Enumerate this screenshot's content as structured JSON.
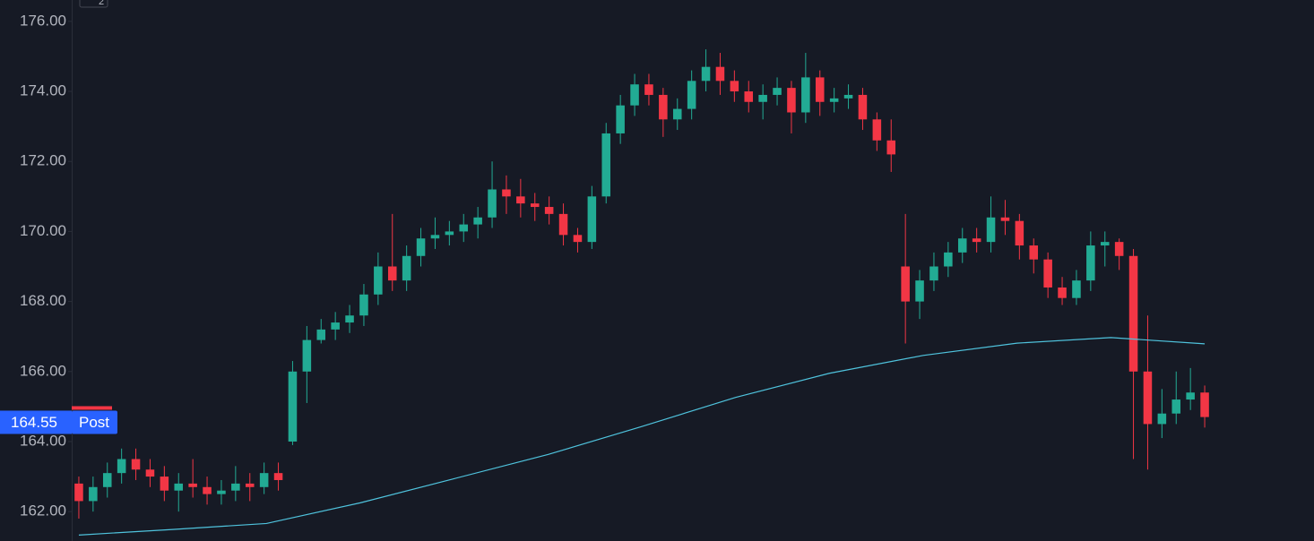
{
  "chart_data": {
    "type": "candlestick",
    "badge": "2",
    "open": [
      162.8,
      162.3,
      162.7,
      163.1,
      163.5,
      163.2,
      163.0,
      162.6,
      162.8,
      162.7,
      162.5,
      162.6,
      162.8,
      162.7,
      163.1,
      164.0,
      166.0,
      166.9,
      167.2,
      167.4,
      167.6,
      168.2,
      169.0,
      168.6,
      169.3,
      169.8,
      169.9,
      170.0,
      170.2,
      170.4,
      171.2,
      171.0,
      170.8,
      170.7,
      170.5,
      169.9,
      169.7,
      171.0,
      172.8,
      173.6,
      174.2,
      173.9,
      173.2,
      173.5,
      174.3,
      174.7,
      174.3,
      174.0,
      173.7,
      173.9,
      174.1,
      173.4,
      174.4,
      173.7,
      173.8,
      173.9,
      173.2,
      172.6,
      169.0,
      168.0,
      168.6,
      169.0,
      169.4,
      169.8,
      169.7,
      170.4,
      170.3,
      169.6,
      169.2,
      168.4,
      168.1,
      168.6,
      169.6,
      169.7,
      169.3,
      166.0,
      164.5,
      164.8,
      165.2,
      165.4
    ],
    "high": [
      163.0,
      163.0,
      163.4,
      163.8,
      163.8,
      163.5,
      163.3,
      163.1,
      163.5,
      163.0,
      162.9,
      163.3,
      163.1,
      163.4,
      163.4,
      166.3,
      167.3,
      167.5,
      167.7,
      167.9,
      168.5,
      169.4,
      170.5,
      169.6,
      170.1,
      170.4,
      170.3,
      170.5,
      170.7,
      172.0,
      171.6,
      171.5,
      171.1,
      171.0,
      170.8,
      170.1,
      171.3,
      173.1,
      173.9,
      174.5,
      174.5,
      174.1,
      173.8,
      174.6,
      175.2,
      175.1,
      174.6,
      174.3,
      174.2,
      174.4,
      174.3,
      175.1,
      174.6,
      174.1,
      174.2,
      174.1,
      173.4,
      173.2,
      170.5,
      168.9,
      169.4,
      169.7,
      170.1,
      170.1,
      171.0,
      170.9,
      170.5,
      169.8,
      169.4,
      168.7,
      168.9,
      170.0,
      170.0,
      169.8,
      169.5,
      167.6,
      165.5,
      166.0,
      166.1,
      165.6
    ],
    "low": [
      161.8,
      162.0,
      162.4,
      162.8,
      162.9,
      162.7,
      162.3,
      162.0,
      162.4,
      162.2,
      162.2,
      162.3,
      162.3,
      162.5,
      162.6,
      163.9,
      165.1,
      166.8,
      166.9,
      167.1,
      167.3,
      167.9,
      168.3,
      168.3,
      169.0,
      169.5,
      169.6,
      169.7,
      169.8,
      170.1,
      170.5,
      170.4,
      170.3,
      170.2,
      169.6,
      169.4,
      169.5,
      170.8,
      172.5,
      173.3,
      173.6,
      172.7,
      172.9,
      173.2,
      174.0,
      173.9,
      173.7,
      173.4,
      173.2,
      173.6,
      172.8,
      173.1,
      173.3,
      173.4,
      173.5,
      172.9,
      172.3,
      171.7,
      166.8,
      167.5,
      168.3,
      168.7,
      169.1,
      169.4,
      169.4,
      169.9,
      169.2,
      168.8,
      168.1,
      167.9,
      167.9,
      168.3,
      169.0,
      168.9,
      163.5,
      163.2,
      164.1,
      164.5,
      164.9,
      164.4
    ],
    "close": [
      162.3,
      162.7,
      163.1,
      163.5,
      163.2,
      163.0,
      162.6,
      162.8,
      162.7,
      162.5,
      162.6,
      162.8,
      162.7,
      163.1,
      162.9,
      166.0,
      166.9,
      167.2,
      167.4,
      167.6,
      168.2,
      169.0,
      168.6,
      169.3,
      169.8,
      169.9,
      170.0,
      170.2,
      170.4,
      171.2,
      171.0,
      170.8,
      170.7,
      170.5,
      169.9,
      169.7,
      171.0,
      172.8,
      173.6,
      174.2,
      173.9,
      173.2,
      173.5,
      174.3,
      174.7,
      174.3,
      174.0,
      173.7,
      173.9,
      174.1,
      173.4,
      174.4,
      173.7,
      173.8,
      173.9,
      173.2,
      172.6,
      172.2,
      168.0,
      168.6,
      169.0,
      169.4,
      169.8,
      169.7,
      170.4,
      170.3,
      169.6,
      169.2,
      168.4,
      168.1,
      168.6,
      169.6,
      169.7,
      169.3,
      166.0,
      164.5,
      164.8,
      165.2,
      165.4,
      164.7
    ],
    "up_color": "#22ab94",
    "down_color": "#f23645",
    "overlay": {
      "color": "#4fc3dd",
      "values": [
        161.33,
        161.49,
        161.66,
        162.25,
        162.94,
        163.63,
        164.43,
        165.26,
        165.95,
        166.46,
        166.81,
        166.97,
        166.79
      ]
    },
    "ylim": [
      161.16,
      176.61
    ],
    "yticks": [
      {
        "value": 162,
        "label": "162.00"
      },
      {
        "value": 164,
        "label": "164.00"
      },
      {
        "value": 166,
        "label": "166.00"
      },
      {
        "value": 168,
        "label": "168.00"
      },
      {
        "value": 170,
        "label": "170.00"
      },
      {
        "value": 172,
        "label": "172.00"
      },
      {
        "value": 174,
        "label": "174.00"
      },
      {
        "value": 176,
        "label": "176.00"
      }
    ],
    "last_price": 164.55,
    "session_label": "Post",
    "label_color": "#2962ff"
  }
}
